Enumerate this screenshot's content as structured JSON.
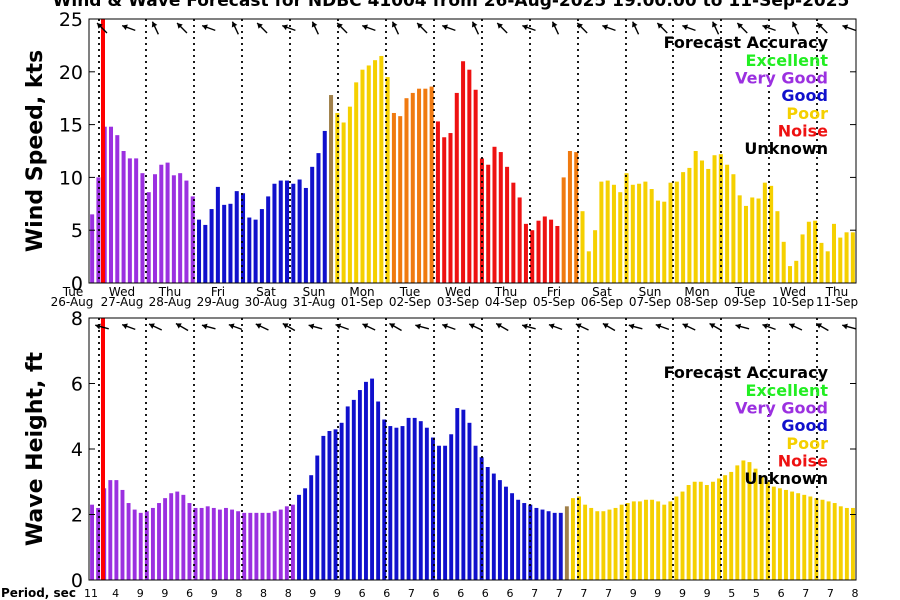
{
  "title": "Wind & Wave Forecast for NDBC 41004 from 26-Aug-2025 19:00:00 to 11-Sep-2025",
  "colors": {
    "excellent": "#22ee22",
    "very_good": "#9b30e0",
    "good": "#1010cc",
    "poor": "#f5d000",
    "noise": "#ee1111",
    "unknown": "#000000",
    "transition_orange": "#f07a10",
    "transition_tan": "#a0804a",
    "now_line": "#ff0000"
  },
  "legend": {
    "title": "Forecast Accuracy",
    "items": [
      {
        "label": "Excellent",
        "color_key": "excellent"
      },
      {
        "label": "Very Good",
        "color_key": "very_good"
      },
      {
        "label": "Good",
        "color_key": "good"
      },
      {
        "label": "Poor",
        "color_key": "poor"
      },
      {
        "label": "Noise",
        "color_key": "noise"
      },
      {
        "label": "Unknown",
        "color_key": "unknown"
      }
    ]
  },
  "chart_data": [
    {
      "type": "bar",
      "title": "Wind & Wave Forecast for NDBC 41004 from 26-Aug-2025 19:00:00 to 11-Sep-2025",
      "ylabel": "Wind Speed, kts",
      "ylim": [
        0,
        25
      ],
      "yticks": [
        0,
        5,
        10,
        15,
        20,
        25
      ],
      "day_labels": [
        {
          "dow": "Tue",
          "date": "26-Aug"
        },
        {
          "dow": "Wed",
          "date": "27-Aug"
        },
        {
          "dow": "Thu",
          "date": "28-Aug"
        },
        {
          "dow": "Fri",
          "date": "29-Aug"
        },
        {
          "dow": "Sat",
          "date": "30-Aug"
        },
        {
          "dow": "Sun",
          "date": "31-Aug"
        },
        {
          "dow": "Mon",
          "date": "01-Sep"
        },
        {
          "dow": "Tue",
          "date": "02-Sep"
        },
        {
          "dow": "Wed",
          "date": "03-Sep"
        },
        {
          "dow": "Thu",
          "date": "04-Sep"
        },
        {
          "dow": "Fri",
          "date": "05-Sep"
        },
        {
          "dow": "Sat",
          "date": "06-Sep"
        },
        {
          "dow": "Sun",
          "date": "07-Sep"
        },
        {
          "dow": "Mon",
          "date": "08-Sep"
        },
        {
          "dow": "Tue",
          "date": "09-Sep"
        },
        {
          "dow": "Wed",
          "date": "10-Sep"
        },
        {
          "dow": "Thu",
          "date": "11-Sep"
        }
      ],
      "segments": [
        {
          "color_key": "very_good",
          "values": [
            6.5,
            10,
            14.8,
            14.8,
            14,
            12.5,
            11.8,
            11.8,
            10.4,
            8.6,
            10.3,
            11.2,
            11.4,
            10.2,
            10.4,
            9.7,
            8.2
          ]
        },
        {
          "color_key": "good",
          "values": [
            6,
            5.5,
            7,
            9.1,
            7.4,
            7.5,
            8.7,
            8.5,
            6.2,
            6,
            7,
            8.2,
            9.4,
            9.7,
            9.7,
            9.4,
            9.8,
            9
          ]
        },
        {
          "color_key": "good",
          "values": [
            11,
            12.3,
            14.4
          ]
        },
        {
          "color_key": "transition_tan",
          "values": [
            17.8
          ]
        },
        {
          "color_key": "poor",
          "values": [
            16.1,
            15.2,
            16.7,
            19,
            20.2,
            20.6,
            21.1,
            21.5,
            19.5
          ]
        },
        {
          "color_key": "transition_orange",
          "values": [
            16.1,
            15.8,
            17.5,
            18,
            18.4,
            18.4,
            18.6
          ]
        },
        {
          "color_key": "noise",
          "values": [
            15.3,
            13.8,
            14.2,
            18,
            21,
            20.2,
            18.3,
            11.8,
            11.2,
            12.9,
            12.4,
            11,
            9.5,
            8.1,
            5.6,
            5
          ]
        },
        {
          "color_key": "noise",
          "values": [
            5.9,
            6.3,
            6,
            5.4
          ]
        },
        {
          "color_key": "transition_orange",
          "values": [
            10,
            12.5,
            12.4
          ]
        },
        {
          "color_key": "poor",
          "values": [
            6.8,
            3,
            5,
            9.6,
            9.7,
            9.3,
            8.6,
            10.4,
            9.3,
            9.4,
            9.6,
            8.9,
            7.8,
            7.7,
            9.5,
            9.6,
            10.5,
            10.9,
            12.5,
            11.6,
            10.8,
            12.1,
            12.2,
            11.2,
            10.3,
            8.3,
            7.3,
            8.1,
            8,
            9.5,
            9.2,
            6.8,
            3.9,
            1.6,
            2.1,
            4.6,
            5.8,
            5.9,
            3.8,
            3,
            5.6,
            4.3,
            4.8,
            4.8
          ]
        }
      ],
      "direction_arrows": 29
    },
    {
      "type": "bar",
      "ylabel": "Wave Height, ft",
      "ylim": [
        0,
        8
      ],
      "yticks": [
        0,
        2,
        4,
        6,
        8
      ],
      "segments": [
        {
          "color_key": "very_good",
          "values": [
            2.3,
            2.2,
            2.8,
            3.05,
            3.05,
            2.75,
            2.35,
            2.15,
            2.05,
            2.1,
            2.2,
            2.35,
            2.5,
            2.65,
            2.7,
            2.6,
            2.35,
            2.2,
            2.2,
            2.25,
            2.2,
            2.15,
            2.2,
            2.15,
            2.1,
            2.05,
            2.05,
            2.05,
            2.05,
            2.05,
            2.1,
            2.15,
            2.25,
            2.3
          ]
        },
        {
          "color_key": "good",
          "values": [
            2.6,
            2.8,
            3.2,
            3.8,
            4.4,
            4.55,
            4.6,
            4.8,
            5.3,
            5.5,
            5.8,
            6.05,
            6.15,
            5.45,
            4.9,
            4.7,
            4.65,
            4.7,
            4.95,
            4.95,
            4.85,
            4.65,
            4.35,
            4.1,
            4.1,
            4.45,
            5.25,
            5.2,
            4.8,
            4.1,
            3.75,
            3.45,
            3.25,
            3.05,
            2.85,
            2.65,
            2.45,
            2.35,
            2.3,
            2.2,
            2.15,
            2.1,
            2.05,
            2.05
          ]
        },
        {
          "color_key": "transition_tan",
          "values": [
            2.25
          ]
        },
        {
          "color_key": "poor",
          "values": [
            2.5,
            2.55,
            2.3,
            2.2,
            2.1,
            2.1,
            2.15,
            2.2,
            2.3,
            2.35,
            2.4,
            2.4,
            2.45,
            2.45,
            2.4,
            2.3,
            2.4,
            2.55,
            2.7,
            2.9,
            3.0,
            3.0,
            2.9,
            3.0,
            3.1,
            3.2,
            3.3,
            3.5,
            3.65,
            3.6,
            3.4,
            3.15,
            3.0,
            2.85,
            2.8,
            2.75,
            2.7,
            2.65,
            2.6,
            2.55,
            2.5,
            2.45,
            2.4,
            2.35,
            2.25,
            2.2,
            2.2
          ]
        }
      ],
      "direction_arrows": 29,
      "period_label": "Period, sec",
      "periods": [
        "11",
        "4",
        "9",
        "9",
        "6",
        "9",
        "8",
        "8",
        "8",
        "9",
        "9",
        "6",
        "6",
        "7",
        "6",
        "6",
        "6",
        "6",
        "7",
        "7",
        "7",
        "7",
        "9",
        "9",
        "9",
        "9",
        "5",
        "5",
        "6",
        "7",
        "7",
        "8"
      ]
    }
  ]
}
